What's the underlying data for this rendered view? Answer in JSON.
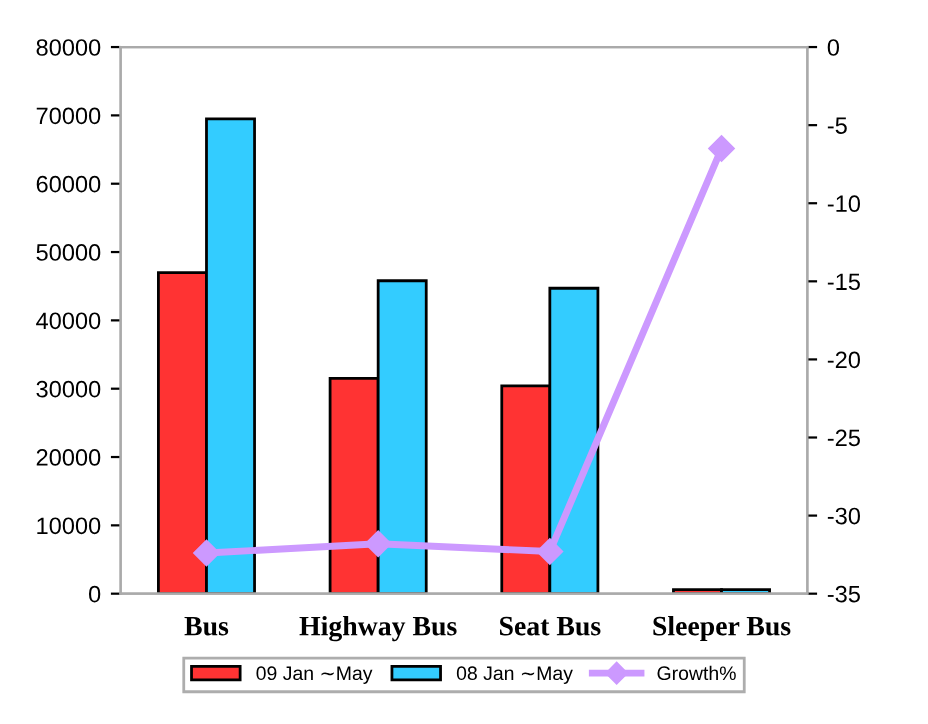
{
  "chart_data": {
    "type": "bar",
    "categories": [
      "Bus",
      "Highway Bus",
      "Seat Bus",
      "Sleeper Bus"
    ],
    "series": [
      {
        "name": "09 Jan ∼May",
        "color": "#ff3333",
        "values": [
          47000,
          31500,
          30400,
          600
        ]
      },
      {
        "name": "08 Jan ∼May",
        "color": "#33ccff",
        "values": [
          69500,
          45800,
          44700,
          600
        ]
      },
      {
        "name": "Growth%",
        "type": "line",
        "axis": "y2",
        "color": "#cc99ff",
        "marker": "diamond",
        "values": [
          -32.4,
          -31.8,
          -32.3,
          -6.5
        ]
      }
    ],
    "ylim": [
      0,
      80000
    ],
    "yticks": [
      0,
      10000,
      20000,
      30000,
      40000,
      50000,
      60000,
      70000,
      80000
    ],
    "y2lim": [
      -35,
      0
    ],
    "y2ticks": [
      0,
      -5,
      -10,
      -15,
      -20,
      -25,
      -30,
      -35
    ],
    "grid": false,
    "legend": "bottom"
  }
}
